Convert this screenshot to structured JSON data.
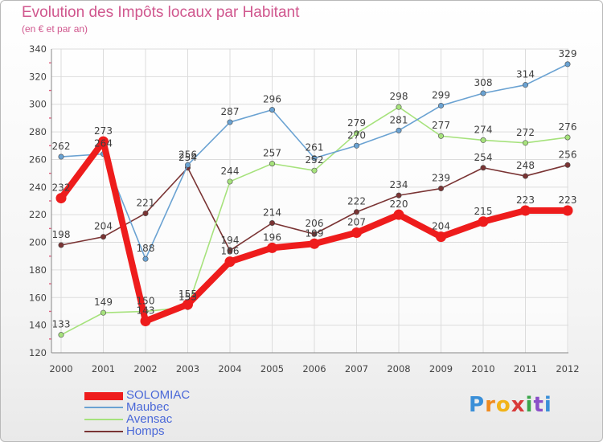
{
  "header": {
    "title": "Evolution des Impôts locaux par Habitant",
    "subtitle": "(en € et par an)"
  },
  "logo": {
    "letters": [
      "P",
      "r",
      "o",
      "x",
      "i",
      "t",
      "i"
    ],
    "colors": [
      "#3a8fd8",
      "#f08a1e",
      "#f2b318",
      "#d83a3a",
      "#3aa64a",
      "#8a4fc8",
      "#3a8fd8"
    ]
  },
  "chart_data": {
    "type": "line",
    "title": "Evolution des Impôts locaux par Habitant",
    "subtitle": "(en € et par an)",
    "xlabel": "",
    "ylabel": "",
    "ylim": [
      120,
      340
    ],
    "yticks": [
      120,
      140,
      160,
      180,
      200,
      220,
      240,
      260,
      280,
      300,
      320,
      340
    ],
    "categories": [
      "2000",
      "2001",
      "2002",
      "2003",
      "2004",
      "2005",
      "2006",
      "2007",
      "2008",
      "2009",
      "2010",
      "2011",
      "2012"
    ],
    "grid": true,
    "legend_position": "bottom-left",
    "series": [
      {
        "name": "SOLOMIAC",
        "color": "#ee1c1c",
        "values": [
          232,
          273,
          143,
          155,
          186,
          196,
          199,
          207,
          220,
          204,
          215,
          223,
          223
        ],
        "labels": [
          "232",
          "273",
          "143",
          "155",
          "186",
          "196",
          "199",
          "207",
          "220",
          "204",
          "215",
          "223",
          "223"
        ]
      },
      {
        "name": "Maubec",
        "color": "#6aa2d2",
        "values": [
          262,
          264,
          188,
          256,
          287,
          296,
          261,
          270,
          281,
          299,
          308,
          314,
          329
        ],
        "labels": [
          "262",
          "264",
          "188",
          "256",
          "287",
          "296",
          "261",
          "270",
          "281",
          "299",
          "308",
          "314",
          "329"
        ]
      },
      {
        "name": "Avensac",
        "color": "#a6e27c",
        "values": [
          133,
          149,
          150,
          153,
          244,
          257,
          252,
          279,
          298,
          277,
          274,
          272,
          276
        ],
        "labels": [
          "133",
          "149",
          "150",
          "153",
          "244",
          "257",
          "252",
          "279",
          "298",
          "277",
          "274",
          "272",
          "276"
        ]
      },
      {
        "name": "Homps",
        "color": "#7a3434",
        "values": [
          198,
          204,
          221,
          254,
          194,
          214,
          206,
          222,
          234,
          239,
          254,
          248,
          256
        ],
        "labels": [
          "198",
          "204",
          "221",
          "254",
          "194",
          "214",
          "206",
          "222",
          "234",
          "239",
          "254",
          "248",
          "256"
        ]
      }
    ]
  }
}
